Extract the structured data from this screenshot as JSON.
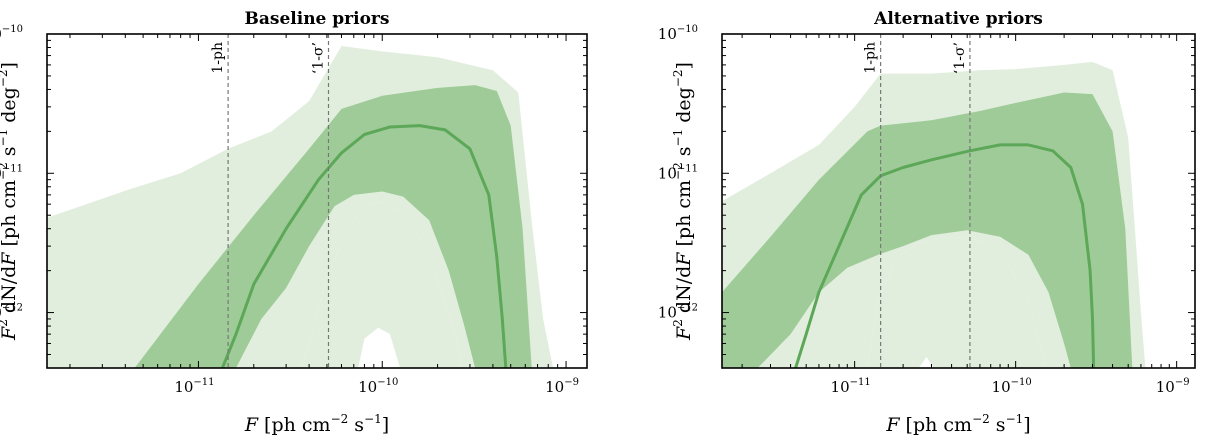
{
  "colors": {
    "outer_band": "#e1eedd",
    "inner_band": "#9fcb98",
    "median_line": "#5ca758",
    "ref_line": "#777777"
  },
  "chart_data": [
    {
      "type": "area",
      "title": "Baseline priors",
      "xlabel": "F [ph cm−2 s−1]",
      "ylabel": "F2 dN/dF [ph cm−2 s−1 deg−2]",
      "xscale": "log",
      "yscale": "log",
      "xlim": [
        1.5e-12,
        1.3e-09
      ],
      "ylim": [
        4e-13,
        1e-10
      ],
      "x_ticks": [
        1e-11,
        1e-10,
        1e-09
      ],
      "x_tick_labels": [
        "10",
        "10",
        "10"
      ],
      "x_tick_exponents": [
        "−11",
        "−10",
        "−9"
      ],
      "y_ticks": [
        1e-12,
        1e-11,
        1e-10
      ],
      "y_tick_labels": [
        "10",
        "10",
        "10"
      ],
      "y_tick_exponents": [
        "−12",
        "−11",
        "−10"
      ],
      "vlines": [
        {
          "label": "1-ph",
          "x": 1.45e-11
        },
        {
          "label": "‘1-σ’",
          "x": 5.1e-11
        }
      ],
      "outer_upper": [
        [
          1.5e-12,
          4.8e-12
        ],
        [
          2.2e-12,
          5.7e-12
        ],
        [
          4e-12,
          7.5e-12
        ],
        [
          8e-12,
          1e-11
        ],
        [
          1.45e-11,
          1.5e-11
        ],
        [
          2.5e-11,
          2e-11
        ],
        [
          4e-11,
          3.3e-11
        ],
        [
          6e-11,
          8.2e-11
        ],
        [
          1e-10,
          7.5e-11
        ],
        [
          2e-10,
          6.8e-11
        ],
        [
          4e-10,
          5.5e-11
        ],
        [
          5.5e-10,
          3.8e-11
        ],
        [
          6.5e-10,
          4.5e-12
        ],
        [
          7.5e-10,
          9e-13
        ],
        [
          8.5e-10,
          4e-13
        ]
      ],
      "outer_lower": [
        [
          3.6e-11,
          4e-13
        ],
        [
          4e-11,
          6e-13
        ],
        [
          5e-11,
          1.8e-12
        ],
        [
          6.5e-11,
          4e-12
        ],
        [
          8e-11,
          5.8e-12
        ],
        [
          1e-10,
          6.3e-12
        ],
        [
          1.3e-10,
          5.2e-12
        ],
        [
          1.7e-10,
          3e-12
        ],
        [
          2.1e-10,
          1.4e-12
        ],
        [
          2.5e-10,
          7e-13
        ],
        [
          2.7e-10,
          4e-13
        ]
      ],
      "hole_bottom": [
        [
          7.4e-11,
          4e-13
        ],
        [
          8e-11,
          6.5e-13
        ],
        [
          9.5e-11,
          7.8e-13
        ],
        [
          1.1e-10,
          7e-13
        ],
        [
          1.25e-10,
          4e-13
        ]
      ],
      "inner_upper": [
        [
          4.5e-12,
          4e-13
        ],
        [
          1e-11,
          1.6e-12
        ],
        [
          2e-11,
          5e-12
        ],
        [
          4e-11,
          1.5e-11
        ],
        [
          6e-11,
          2.9e-11
        ],
        [
          1e-10,
          3.6e-11
        ],
        [
          2e-10,
          4.1e-11
        ],
        [
          3.2e-10,
          4.3e-11
        ],
        [
          4.2e-10,
          3.9e-11
        ],
        [
          5e-10,
          2.2e-11
        ],
        [
          5.8e-10,
          4e-12
        ],
        [
          6.5e-10,
          4e-13
        ]
      ],
      "inner_lower": [
        [
          1.6e-11,
          4e-13
        ],
        [
          2.2e-11,
          9e-13
        ],
        [
          3e-11,
          1.5e-12
        ],
        [
          4e-11,
          3e-12
        ],
        [
          5.5e-11,
          5.8e-12
        ],
        [
          7e-11,
          7e-12
        ],
        [
          1e-10,
          7.4e-12
        ],
        [
          1.3e-10,
          6.8e-12
        ],
        [
          1.8e-10,
          4.6e-12
        ],
        [
          2.3e-10,
          2e-12
        ],
        [
          2.8e-10,
          8e-13
        ],
        [
          3.2e-10,
          4e-13
        ]
      ],
      "median": [
        [
          1.35e-11,
          4e-13
        ],
        [
          1.6e-11,
          7e-13
        ],
        [
          2e-11,
          1.6e-12
        ],
        [
          3e-11,
          4e-12
        ],
        [
          4.5e-11,
          9e-12
        ],
        [
          6e-11,
          1.4e-11
        ],
        [
          8e-11,
          1.9e-11
        ],
        [
          1.1e-10,
          2.15e-11
        ],
        [
          1.6e-10,
          2.2e-11
        ],
        [
          2.2e-10,
          2.05e-11
        ],
        [
          3e-10,
          1.5e-11
        ],
        [
          3.8e-10,
          7e-12
        ],
        [
          4.2e-10,
          2.5e-12
        ],
        [
          4.5e-10,
          9e-13
        ],
        [
          4.7e-10,
          4e-13
        ]
      ]
    },
    {
      "type": "area",
      "title": "Alternative priors",
      "xlabel": "F [ph cm−2 s−1]",
      "ylabel": "F2 dN/dF [ph cm−2 s−1 deg−2]",
      "xscale": "log",
      "yscale": "log",
      "xlim": [
        1.5e-12,
        1.3e-09
      ],
      "ylim": [
        4e-13,
        1e-10
      ],
      "x_ticks": [
        1e-11,
        1e-10,
        1e-09
      ],
      "x_tick_labels": [
        "10",
        "10",
        "10"
      ],
      "x_tick_exponents": [
        "−11",
        "−10",
        "−9"
      ],
      "y_ticks": [
        1e-12,
        1e-11,
        1e-10
      ],
      "y_tick_labels": [
        "10",
        "10",
        "10"
      ],
      "y_tick_exponents": [
        "−12",
        "−11",
        "−10"
      ],
      "vlines": [
        {
          "label": "1-ph",
          "x": 1.45e-11
        },
        {
          "label": "‘1-σ’",
          "x": 5.2e-11
        }
      ],
      "outer_upper": [
        [
          1.5e-12,
          6.3e-12
        ],
        [
          3e-12,
          1e-11
        ],
        [
          6e-12,
          1.6e-11
        ],
        [
          1e-11,
          3e-11
        ],
        [
          1.45e-11,
          5.2e-11
        ],
        [
          3e-11,
          5.2e-11
        ],
        [
          6e-11,
          5.5e-11
        ],
        [
          1e-10,
          5.6e-11
        ],
        [
          2e-10,
          6e-11
        ],
        [
          3e-10,
          6.3e-11
        ],
        [
          4e-10,
          5.5e-11
        ],
        [
          5e-10,
          1.8e-11
        ],
        [
          5.5e-10,
          4e-12
        ],
        [
          6e-10,
          1e-12
        ],
        [
          6.4e-10,
          4e-13
        ]
      ],
      "outer_lower": [
        [
          1.2e-11,
          4e-13
        ],
        [
          1.4e-11,
          1.2e-12
        ],
        [
          1.8e-11,
          2.4e-12
        ],
        [
          2.5e-11,
          3.2e-12
        ],
        [
          4e-11,
          3.5e-12
        ],
        [
          6e-11,
          3.3e-12
        ],
        [
          9e-11,
          2.2e-12
        ],
        [
          1.2e-10,
          1.2e-12
        ],
        [
          1.4e-10,
          6e-13
        ],
        [
          1.55e-10,
          4e-13
        ]
      ],
      "hole_bottom": [
        [
          2.5e-11,
          4e-13
        ],
        [
          2.8e-11,
          4.8e-13
        ],
        [
          3.1e-11,
          4e-13
        ]
      ],
      "inner_upper": [
        [
          1.5e-12,
          1.4e-12
        ],
        [
          3e-12,
          3.5e-12
        ],
        [
          6e-12,
          9e-12
        ],
        [
          1.2e-11,
          2e-11
        ],
        [
          1.45e-11,
          2.2e-11
        ],
        [
          3e-11,
          2.4e-11
        ],
        [
          6e-11,
          2.8e-11
        ],
        [
          1e-10,
          3.2e-11
        ],
        [
          2e-10,
          3.8e-11
        ],
        [
          3e-10,
          3.7e-11
        ],
        [
          4e-10,
          2e-11
        ],
        [
          4.8e-10,
          4e-12
        ],
        [
          5.3e-10,
          4e-13
        ]
      ],
      "inner_lower": [
        [
          2.5e-12,
          4e-13
        ],
        [
          4e-12,
          7e-13
        ],
        [
          6e-12,
          1.4e-12
        ],
        [
          9e-12,
          2.1e-12
        ],
        [
          1.4e-11,
          2.6e-12
        ],
        [
          2e-11,
          3e-12
        ],
        [
          3e-11,
          3.6e-12
        ],
        [
          5e-11,
          3.9e-12
        ],
        [
          8e-11,
          3.5e-12
        ],
        [
          1.2e-10,
          2.6e-12
        ],
        [
          1.6e-10,
          1.4e-12
        ],
        [
          2e-10,
          6e-13
        ],
        [
          2.2e-10,
          4e-13
        ]
      ],
      "median": [
        [
          4.3e-12,
          4e-13
        ],
        [
          5e-12,
          7e-13
        ],
        [
          6e-12,
          1.4e-12
        ],
        [
          8e-12,
          3e-12
        ],
        [
          1.1e-11,
          7e-12
        ],
        [
          1.45e-11,
          9.6e-12
        ],
        [
          2e-11,
          1.1e-11
        ],
        [
          3e-11,
          1.25e-11
        ],
        [
          5.2e-11,
          1.45e-11
        ],
        [
          8e-11,
          1.6e-11
        ],
        [
          1.2e-10,
          1.6e-11
        ],
        [
          1.7e-10,
          1.45e-11
        ],
        [
          2.2e-10,
          1.1e-11
        ],
        [
          2.6e-10,
          6e-12
        ],
        [
          2.9e-10,
          2e-12
        ],
        [
          3e-10,
          9e-13
        ],
        [
          3.05e-10,
          4e-13
        ]
      ]
    }
  ]
}
